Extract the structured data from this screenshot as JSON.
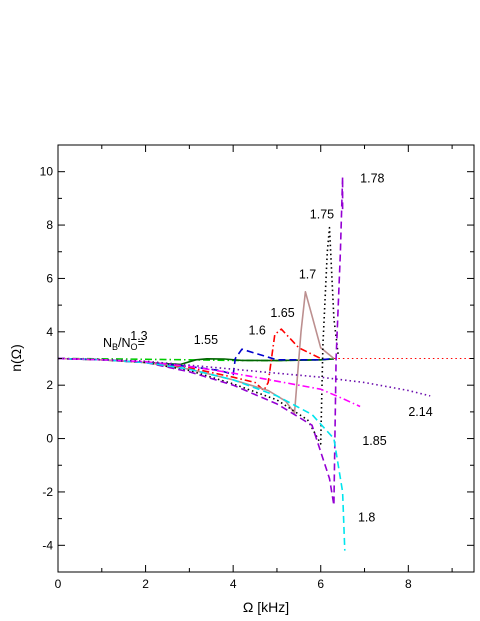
{
  "chart_data": {
    "type": "line",
    "title": "",
    "xlabel": "Ω [kHz]",
    "ylabel": "n(Ω)",
    "xlim": [
      0,
      9.5
    ],
    "ylim": [
      -5,
      11
    ],
    "xticks": [
      0,
      2,
      4,
      6,
      8
    ],
    "yticks": [
      -4,
      -2,
      0,
      2,
      4,
      6,
      8,
      10
    ],
    "grid": false,
    "legend": "none",
    "annotation_prefix": "N_B/N_O=",
    "prefix_parts": {
      "main1": "N",
      "sub1": "B",
      "slash": "/N",
      "sub2": "O",
      "eq": "="
    },
    "reference_line": {
      "y": 3,
      "x_from": 6.3,
      "x_to": 9.5,
      "color": "#ff0000",
      "style": "dotted"
    },
    "series": [
      {
        "label": "1.3",
        "color": "#00cc00",
        "style": "dashdot",
        "points": [
          [
            0,
            3.0
          ],
          [
            1,
            2.99
          ],
          [
            2,
            2.97
          ],
          [
            3,
            2.95
          ],
          [
            4,
            2.93
          ],
          [
            5,
            2.92
          ],
          [
            6,
            2.95
          ],
          [
            6.3,
            3.0
          ]
        ]
      },
      {
        "label": "1.55",
        "color": "#006400",
        "style": "solid",
        "points": [
          [
            0,
            3.0
          ],
          [
            1,
            2.95
          ],
          [
            2,
            2.85
          ],
          [
            2.8,
            2.78
          ],
          [
            3.15,
            2.95
          ],
          [
            3.4,
            2.99
          ],
          [
            3.8,
            2.98
          ],
          [
            4.2,
            2.93
          ],
          [
            5,
            2.92
          ],
          [
            6,
            2.95
          ],
          [
            6.3,
            2.98
          ]
        ]
      },
      {
        "label": "1.6",
        "color": "#0000cc",
        "style": "dashed",
        "points": [
          [
            0,
            3.0
          ],
          [
            1,
            2.96
          ],
          [
            2,
            2.85
          ],
          [
            3,
            2.7
          ],
          [
            3.7,
            2.55
          ],
          [
            4.0,
            2.4
          ],
          [
            4.05,
            3.0
          ],
          [
            4.2,
            3.35
          ],
          [
            4.5,
            3.2
          ],
          [
            5,
            2.95
          ],
          [
            6,
            2.95
          ],
          [
            6.3,
            3.0
          ]
        ]
      },
      {
        "label": "1.65",
        "color": "#ff0000",
        "style": "dashdot",
        "points": [
          [
            0,
            3.0
          ],
          [
            1,
            2.95
          ],
          [
            2,
            2.85
          ],
          [
            3,
            2.65
          ],
          [
            4,
            2.3
          ],
          [
            4.5,
            2.1
          ],
          [
            4.7,
            1.8
          ],
          [
            4.8,
            2.1
          ],
          [
            4.95,
            3.9
          ],
          [
            5.1,
            4.1
          ],
          [
            5.5,
            3.4
          ],
          [
            6,
            3.0
          ]
        ]
      },
      {
        "label": "1.7",
        "color": "#bc8f8f",
        "style": "solid",
        "points": [
          [
            0,
            3.0
          ],
          [
            1,
            2.95
          ],
          [
            2,
            2.85
          ],
          [
            3,
            2.6
          ],
          [
            4,
            2.2
          ],
          [
            4.8,
            1.8
          ],
          [
            5.2,
            1.4
          ],
          [
            5.4,
            0.95
          ],
          [
            5.55,
            4.0
          ],
          [
            5.65,
            5.5
          ],
          [
            5.8,
            4.6
          ],
          [
            6.0,
            3.4
          ],
          [
            6.3,
            3.0
          ]
        ]
      },
      {
        "label": "1.75",
        "color": "#000000",
        "style": "dotted",
        "points": [
          [
            0,
            3.0
          ],
          [
            1,
            2.95
          ],
          [
            2,
            2.85
          ],
          [
            3,
            2.55
          ],
          [
            4,
            2.05
          ],
          [
            5,
            1.45
          ],
          [
            5.7,
            0.7
          ],
          [
            6.0,
            -0.2
          ],
          [
            6.05,
            3.5
          ],
          [
            6.15,
            7.0
          ],
          [
            6.2,
            7.9
          ],
          [
            6.3,
            4.5
          ],
          [
            6.4,
            3.1
          ]
        ]
      },
      {
        "label": "1.78",
        "color": "#9400d3",
        "style": "dashed",
        "points": [
          [
            0,
            3.0
          ],
          [
            1,
            2.95
          ],
          [
            2,
            2.85
          ],
          [
            3,
            2.5
          ],
          [
            4,
            2.0
          ],
          [
            5,
            1.3
          ],
          [
            5.8,
            0.5
          ],
          [
            6.2,
            -1.5
          ],
          [
            6.3,
            -2.5
          ],
          [
            6.35,
            3.0
          ],
          [
            6.45,
            7.0
          ],
          [
            6.5,
            9.8
          ],
          [
            6.5,
            8.6
          ]
        ]
      },
      {
        "label": "1.8",
        "color": "#00e5ee",
        "style": "dashed",
        "points": [
          [
            0,
            3.0
          ],
          [
            1,
            2.95
          ],
          [
            2,
            2.85
          ],
          [
            3,
            2.6
          ],
          [
            4,
            2.2
          ],
          [
            5,
            1.6
          ],
          [
            5.8,
            0.9
          ],
          [
            6.3,
            0.0
          ],
          [
            6.5,
            -2.0
          ],
          [
            6.55,
            -4.2
          ]
        ]
      },
      {
        "label": "1.85",
        "color": "#ff00ff",
        "style": "dashdot",
        "points": [
          [
            0,
            3.0
          ],
          [
            1,
            2.95
          ],
          [
            2,
            2.88
          ],
          [
            3,
            2.7
          ],
          [
            4,
            2.45
          ],
          [
            5,
            2.15
          ],
          [
            6,
            1.85
          ],
          [
            6.5,
            1.5
          ],
          [
            6.9,
            1.2
          ]
        ]
      },
      {
        "label": "2.14",
        "color": "#6a0dad",
        "style": "dotted",
        "points": [
          [
            0,
            3.0
          ],
          [
            1,
            2.96
          ],
          [
            2,
            2.9
          ],
          [
            3,
            2.75
          ],
          [
            4,
            2.6
          ],
          [
            5,
            2.45
          ],
          [
            6,
            2.3
          ],
          [
            7,
            2.1
          ],
          [
            8,
            1.8
          ],
          [
            8.5,
            1.6
          ]
        ]
      }
    ],
    "labels": [
      {
        "text": "1.3",
        "x": 1.65,
        "y": 3.7
      },
      {
        "text": "1.55",
        "x": 3.1,
        "y": 3.55
      },
      {
        "text": "1.6",
        "x": 4.35,
        "y": 3.9
      },
      {
        "text": "1.65",
        "x": 4.85,
        "y": 4.55
      },
      {
        "text": "1.7",
        "x": 5.5,
        "y": 6.0
      },
      {
        "text": "1.75",
        "x": 5.75,
        "y": 8.25
      },
      {
        "text": "1.78",
        "x": 6.9,
        "y": 9.6
      },
      {
        "text": "2.14",
        "x": 8.0,
        "y": 0.85
      },
      {
        "text": "1.85",
        "x": 6.95,
        "y": -0.25
      },
      {
        "text": "1.8",
        "x": 6.85,
        "y": -3.1
      }
    ]
  }
}
